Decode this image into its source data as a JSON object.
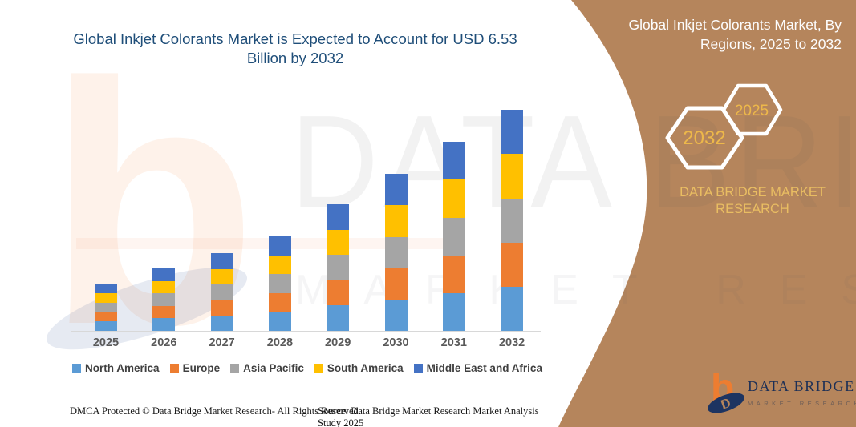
{
  "header": {
    "title": "Global Inkjet Colorants Market is Expected to Account for USD 6.53 Billion by 2032"
  },
  "side_panel": {
    "title": "Global Inkjet Colorants Market, By Regions, 2025 to 2032",
    "hexagon_large_label": "2032",
    "hexagon_small_label": "2025",
    "brand_text": "DATA BRIDGE MARKET RESEARCH",
    "background_color": "#b5855c",
    "gold_color": "#edb84a"
  },
  "watermark": {
    "letter": "b",
    "line1": "DATA BRIDGE",
    "line2": "MARKET RESEARCH"
  },
  "chart_data": {
    "type": "bar",
    "stacked": true,
    "title": "Global Inkjet Colorants Market is Expected to Account for USD 6.53 Billion by 2032",
    "unit": "USD Billion",
    "categories": [
      "2025",
      "2026",
      "2027",
      "2028",
      "2029",
      "2030",
      "2031",
      "2032"
    ],
    "totals": [
      1.39,
      1.84,
      2.31,
      2.81,
      3.74,
      4.66,
      5.6,
      6.53
    ],
    "series": [
      {
        "name": "North America",
        "color": "#5B9BD5",
        "values": [
          0.28,
          0.37,
          0.46,
          0.56,
          0.75,
          0.93,
          1.12,
          1.31
        ]
      },
      {
        "name": "Europe",
        "color": "#ED7D31",
        "values": [
          0.28,
          0.37,
          0.46,
          0.56,
          0.75,
          0.93,
          1.12,
          1.31
        ]
      },
      {
        "name": "Asia Pacific",
        "color": "#A5A5A5",
        "values": [
          0.28,
          0.37,
          0.46,
          0.56,
          0.75,
          0.93,
          1.12,
          1.31
        ]
      },
      {
        "name": "South America",
        "color": "#FFC000",
        "values": [
          0.28,
          0.37,
          0.46,
          0.56,
          0.75,
          0.93,
          1.12,
          1.31
        ]
      },
      {
        "name": "Middle East and Africa",
        "color": "#4472C4",
        "values": [
          0.28,
          0.37,
          0.46,
          0.56,
          0.75,
          0.93,
          1.12,
          1.31
        ]
      }
    ],
    "ylim": [
      0,
      7
    ],
    "grid": false,
    "legend_position": "bottom"
  },
  "footer": {
    "left": "DMCA Protected © Data Bridge Market Research-  All Rights Reserved.",
    "source": "Source: Data Bridge Market Research  Market Analysis Study 2025"
  },
  "logo": {
    "name": "DATA BRIDGE",
    "tagline": "MARKET RESEARCH"
  }
}
